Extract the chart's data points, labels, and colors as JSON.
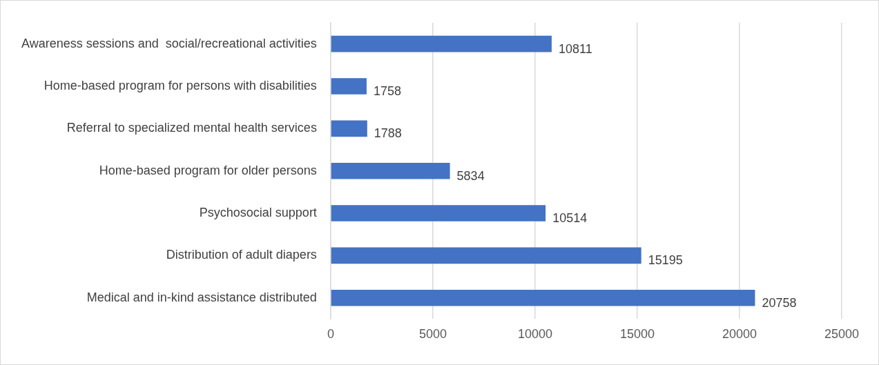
{
  "chart_data": {
    "type": "bar",
    "orientation": "horizontal",
    "categories": [
      "Awareness sessions and  social/recreational activities",
      "Home-based program for persons with disabilities",
      "Referral to specialized mental health services",
      "Home-based program for older persons",
      "Psychosocial support",
      "Distribution of adult diapers",
      "Medical and in-kind assistance distributed"
    ],
    "values": [
      10811,
      1758,
      1788,
      5834,
      10514,
      15195,
      20758
    ],
    "color": "#4472c4",
    "xlim": [
      0,
      25000
    ],
    "xticks": [
      0,
      5000,
      10000,
      15000,
      20000,
      25000
    ],
    "grid": "x",
    "data_labels": true,
    "legend": false
  }
}
